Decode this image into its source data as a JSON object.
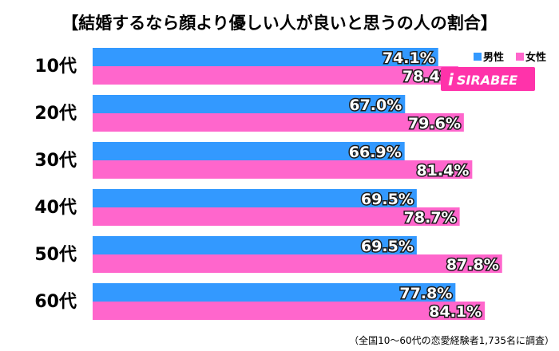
{
  "chart_data": {
    "type": "bar",
    "title": "【結婚するなら顔より優しい人が良いと思うの人の割合】",
    "categories": [
      "10代",
      "20代",
      "30代",
      "40代",
      "50代",
      "60代"
    ],
    "series": [
      {
        "name": "男性",
        "values": [
          74.1,
          67.0,
          66.9,
          69.5,
          69.5,
          77.8
        ],
        "color": "#3399ff"
      },
      {
        "name": "女性",
        "values": [
          78.4,
          79.6,
          81.4,
          78.7,
          87.8,
          84.1
        ],
        "color": "#ff66cc"
      }
    ],
    "value_suffix": "%",
    "xlim": [
      0,
      100
    ],
    "legend_position": "top-right",
    "grid": false,
    "note": "（全国10～60代の恋愛経験者1,735名に調査）"
  },
  "logo": {
    "text": "SIRABEE",
    "mark": "i"
  }
}
